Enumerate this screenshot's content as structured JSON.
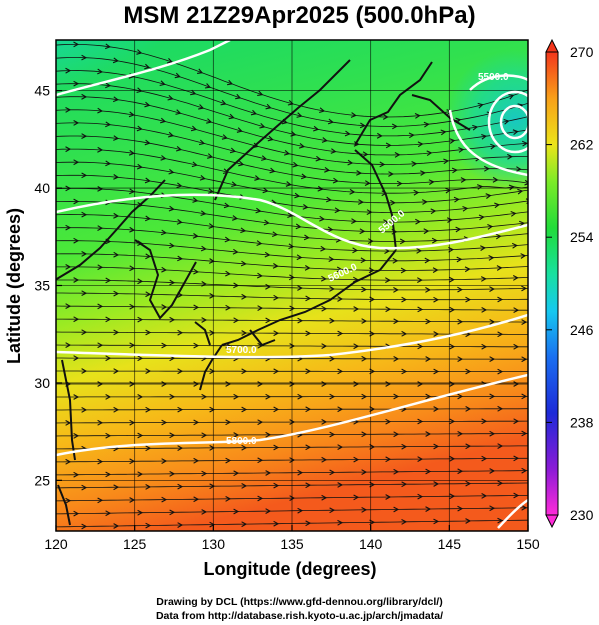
{
  "title": "MSM 21Z29Apr2025 (500.0hPa)",
  "x_axis": {
    "label": "Longitude (degrees)",
    "range": [
      120,
      150
    ],
    "ticks": [
      "120",
      "125",
      "130",
      "135",
      "140",
      "145",
      "150"
    ]
  },
  "y_axis": {
    "label": "Latitude  (degrees)",
    "range": [
      22.4,
      47.6
    ],
    "ticks": [
      "25",
      "30",
      "35",
      "40",
      "45"
    ]
  },
  "colorbar": {
    "range": [
      230,
      270
    ],
    "ticks": [
      "230",
      "238",
      "246",
      "254",
      "262",
      "270"
    ]
  },
  "contour_labels": [
    "5500.0",
    "5600.0",
    "5700.0",
    "5800.0",
    "5500.0"
  ],
  "footer": {
    "line1": "Drawing by DCL (https://www.gfd-dennou.org/library/dcl/)",
    "line2": "Data from http://database.rish.kyoto-u.ac.jp/arch/jmadata/"
  }
}
